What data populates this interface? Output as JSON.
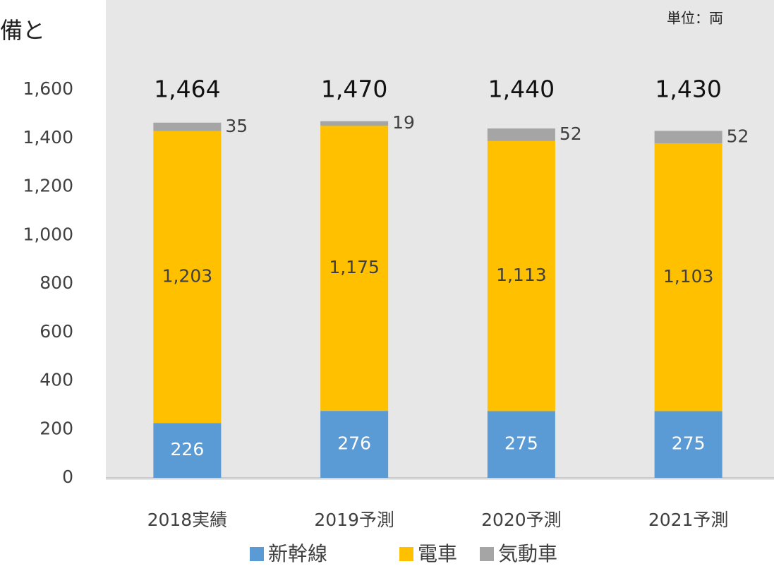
{
  "chart_data": {
    "type": "stacked_bar",
    "title": "備と",
    "unit_label": "単位：両",
    "categories": [
      "2018実績",
      "2019予測",
      "2020予測",
      "2021予測"
    ],
    "series": [
      {
        "name": "新幹線",
        "color": "#5b9bd5",
        "values": [
          226,
          276,
          275,
          275
        ]
      },
      {
        "name": "電車",
        "color": "#ffc000",
        "values": [
          1203,
          1175,
          1113,
          1103
        ],
        "value_labels": [
          "1,203",
          "1,175",
          "1,113",
          "1,103"
        ]
      },
      {
        "name": "気動車",
        "color": "#a5a5a5",
        "values": [
          35,
          19,
          52,
          52
        ]
      }
    ],
    "total_labels": [
      "1,464",
      "1,470",
      "1,440",
      "1,430"
    ],
    "ylim": [
      0,
      1600
    ],
    "yticks": [
      0,
      200,
      400,
      600,
      800,
      {
        "value": 1000,
        "label": "1,000"
      },
      {
        "value": 1200,
        "label": "1,200"
      },
      {
        "value": 1400,
        "label": "1,400"
      },
      {
        "value": 1600,
        "label": "1,600"
      }
    ]
  }
}
